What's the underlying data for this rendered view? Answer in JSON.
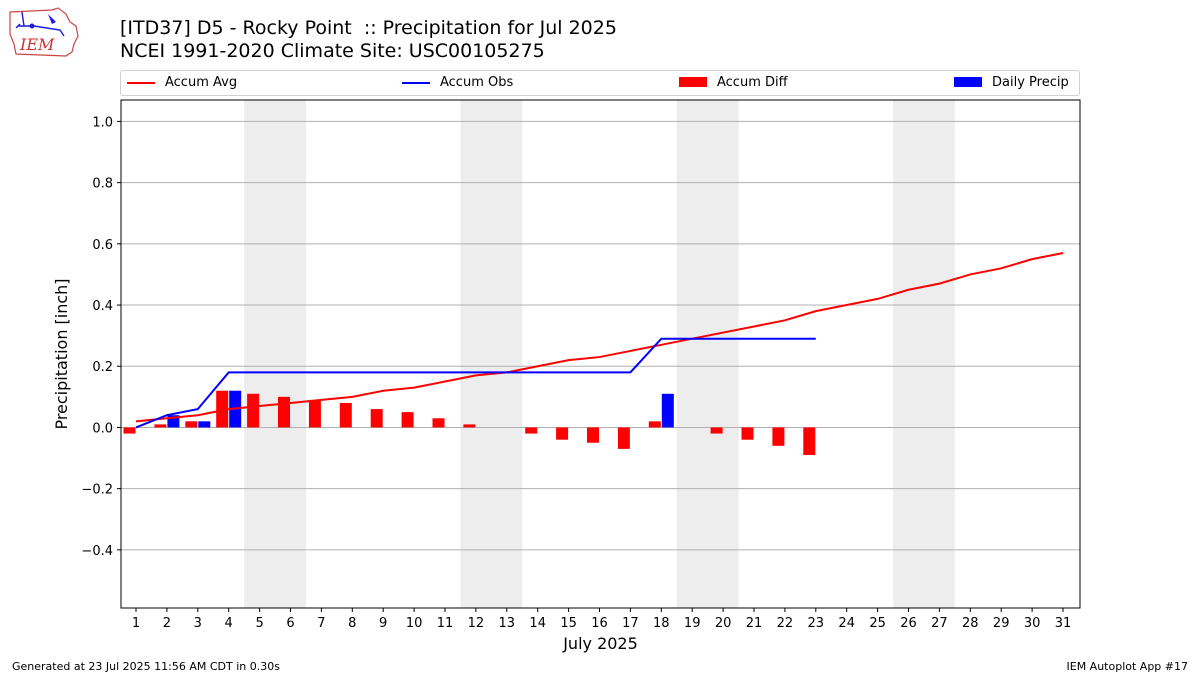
{
  "header": {
    "title_line1": "[ITD37] D5 - Rocky Point  :: Precipitation for Jul 2025",
    "title_line2": "NCEI 1991-2020 Climate Site: USC00105275",
    "logo_text": "IEM"
  },
  "legend": {
    "items": [
      {
        "label": "Accum Avg",
        "kind": "line",
        "color": "#ff0000"
      },
      {
        "label": "Accum Obs",
        "kind": "line",
        "color": "#0000ff"
      },
      {
        "label": "Accum Diff",
        "kind": "box",
        "color": "#ff0000"
      },
      {
        "label": "Daily Precip",
        "kind": "box",
        "color": "#0000ff"
      }
    ]
  },
  "footer": {
    "left": "Generated at 23 Jul 2025 11:56 AM CDT in 0.30s",
    "right": "IEM Autoplot App #17"
  },
  "chart_data": {
    "type": "bar",
    "xlabel": "July 2025",
    "ylabel": "Precipitation [inch]",
    "ylim": [
      -0.59,
      1.07
    ],
    "yticks": [
      -0.4,
      -0.2,
      0.0,
      0.2,
      0.4,
      0.6,
      0.8,
      1.0
    ],
    "ytick_labels": [
      "−0.4",
      "−0.2",
      "0.0",
      "0.2",
      "0.4",
      "0.6",
      "0.8",
      "1.0"
    ],
    "grid": "horizontal",
    "legend_placement": "top",
    "weekend_shading": [
      [
        5,
        6
      ],
      [
        12,
        13
      ],
      [
        19,
        20
      ],
      [
        26,
        27
      ]
    ],
    "days": [
      1,
      2,
      3,
      4,
      5,
      6,
      7,
      8,
      9,
      10,
      11,
      12,
      13,
      14,
      15,
      16,
      17,
      18,
      19,
      20,
      21,
      22,
      23,
      24,
      25,
      26,
      27,
      28,
      29,
      30,
      31
    ],
    "series": [
      {
        "name": "Accum Avg",
        "kind": "line",
        "color": "#ff0000",
        "values": [
          0.02,
          0.03,
          0.04,
          0.06,
          0.07,
          0.08,
          0.09,
          0.1,
          0.12,
          0.13,
          0.15,
          0.17,
          0.18,
          0.2,
          0.22,
          0.23,
          0.25,
          0.27,
          0.29,
          0.31,
          0.33,
          0.35,
          0.38,
          0.4,
          0.42,
          0.45,
          0.47,
          0.5,
          0.52,
          0.55,
          0.57
        ]
      },
      {
        "name": "Accum Obs",
        "kind": "line",
        "color": "#0000ff",
        "values": [
          0.0,
          0.04,
          0.06,
          0.18,
          0.18,
          0.18,
          0.18,
          0.18,
          0.18,
          0.18,
          0.18,
          0.18,
          0.18,
          0.18,
          0.18,
          0.18,
          0.18,
          0.29,
          0.29,
          0.29,
          0.29,
          0.29,
          0.29
        ]
      },
      {
        "name": "Accum Diff",
        "kind": "bar",
        "color": "#ff0000",
        "values": [
          -0.02,
          0.01,
          0.02,
          0.12,
          0.11,
          0.1,
          0.09,
          0.08,
          0.06,
          0.05,
          0.03,
          0.01,
          0.0,
          -0.02,
          -0.04,
          -0.05,
          -0.07,
          0.02,
          0.0,
          -0.02,
          -0.04,
          -0.06,
          -0.09
        ]
      },
      {
        "name": "Daily Precip",
        "kind": "bar",
        "color": "#0000ff",
        "values": [
          0.0,
          0.04,
          0.02,
          0.12,
          0,
          0,
          0,
          0,
          0,
          0,
          0,
          0,
          0,
          0,
          0,
          0,
          0,
          0.11,
          0,
          0,
          0,
          0,
          0
        ]
      }
    ]
  }
}
